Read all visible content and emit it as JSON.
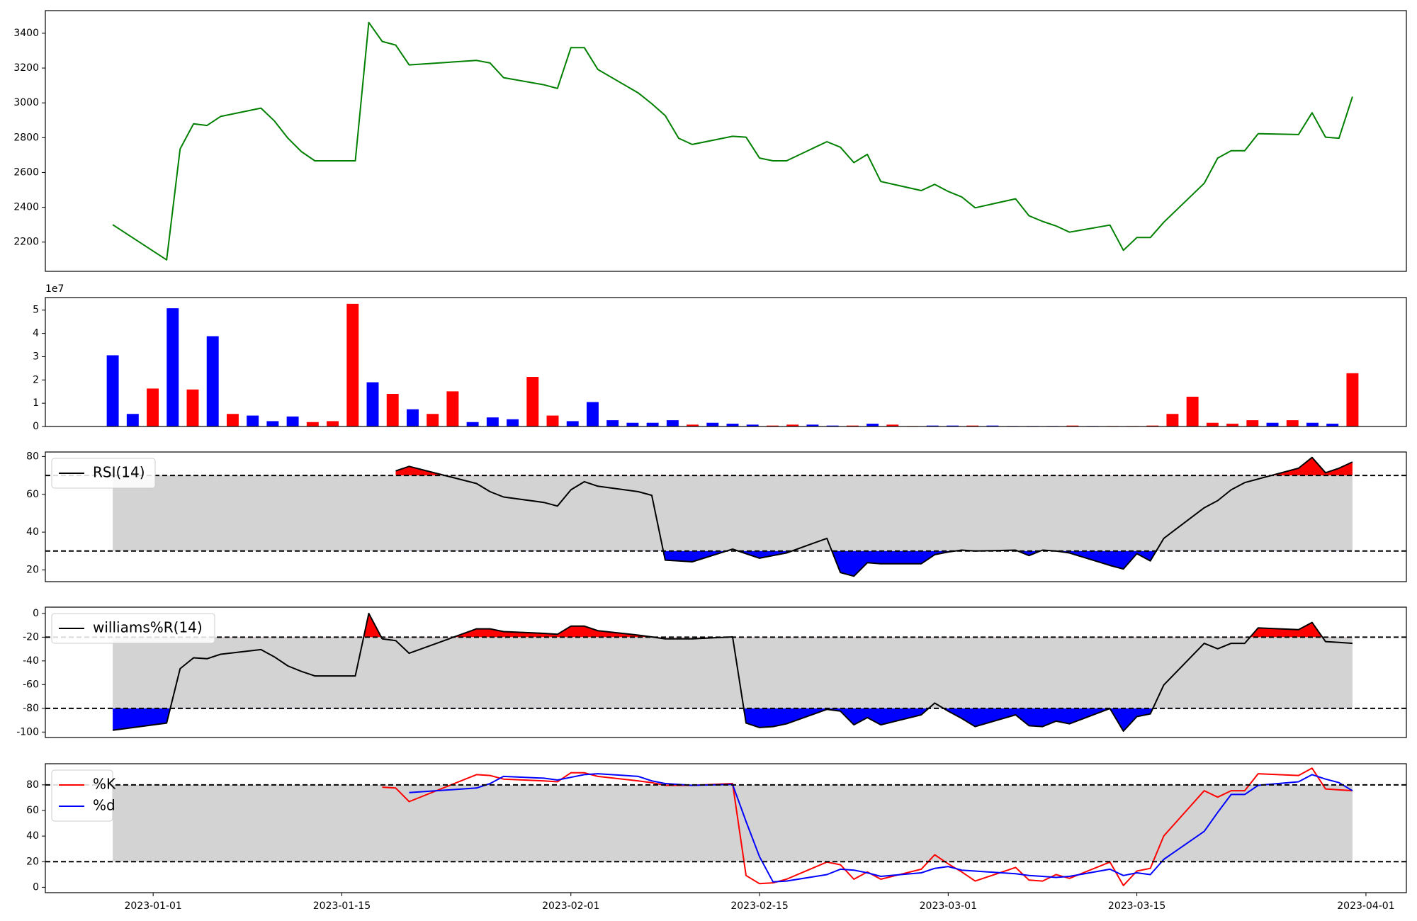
{
  "chart_data": [
    {
      "type": "line",
      "ylim": [
        2032,
        3530
      ],
      "yticks": [
        2200,
        2400,
        2600,
        2800,
        3000,
        3200,
        3400
      ],
      "series": [
        {
          "color": "green",
          "values": [
            2300,
            2098,
            2735,
            2880,
            2870,
            2922,
            2970,
            2896,
            2797,
            2720,
            2667,
            2667,
            3462,
            3353,
            3332,
            3218,
            3244,
            3229,
            3145,
            3104,
            3083,
            3317,
            3317,
            3192,
            3057,
            2995,
            2927,
            2797,
            2761,
            2808,
            2803,
            2683,
            2667,
            2667,
            2777,
            2745,
            2657,
            2704,
            2548,
            2496,
            2532,
            2491,
            2460,
            2397,
            2449,
            2351,
            2319,
            2293,
            2257,
            2298,
            2153,
            2226,
            2226,
            2314,
            2538,
            2683,
            2725,
            2725,
            2823,
            2818,
            2943,
            2803,
            2797,
            3036
          ]
        }
      ]
    },
    {
      "type": "bar",
      "offset_text": "1e7",
      "ylim": [
        0,
        5.54
      ],
      "yticks": [
        0,
        1,
        2,
        3,
        4,
        5
      ],
      "values": [
        3.06,
        0.54,
        1.63,
        5.08,
        1.59,
        3.88,
        0.54,
        0.47,
        0.23,
        0.43,
        0.19,
        0.23,
        5.27,
        1.9,
        1.4,
        0.74,
        0.54,
        1.51,
        0.19,
        0.39,
        0.31,
        2.13,
        0.47,
        0.23,
        1.05,
        0.27,
        0.16,
        0.16,
        0.27,
        0.08,
        0.16,
        0.12,
        0.08,
        0.04,
        0.08,
        0.08,
        0.04,
        0.04,
        0.12,
        0.08,
        0.02,
        0.04,
        0.04,
        0.04,
        0.04,
        0.02,
        0.02,
        0.02,
        0.04,
        0.02,
        0.02,
        0.02,
        0.04,
        0.54,
        1.28,
        0.16,
        0.12,
        0.27,
        0.16,
        0.27,
        0.16,
        0.12,
        2.29
      ],
      "colors": [
        "blue",
        "blue",
        "red",
        "blue",
        "red",
        "blue",
        "red",
        "blue",
        "blue",
        "blue",
        "red",
        "red",
        "red",
        "blue",
        "red",
        "blue",
        "red",
        "red",
        "blue",
        "blue",
        "blue",
        "red",
        "red",
        "blue",
        "blue",
        "blue",
        "blue",
        "blue",
        "blue",
        "red",
        "blue",
        "blue",
        "blue",
        "red",
        "red",
        "blue",
        "blue",
        "red",
        "blue",
        "red",
        "red",
        "blue",
        "blue",
        "red",
        "blue",
        "blue",
        "blue",
        "blue",
        "red",
        "blue",
        "red",
        "red",
        "red",
        "red",
        "red",
        "red",
        "red",
        "red",
        "blue",
        "red",
        "blue",
        "blue",
        "red"
      ]
    },
    {
      "type": "line",
      "ylim": [
        13.8,
        82.4
      ],
      "yticks": [
        20,
        40,
        60,
        80
      ],
      "legend": "upper left",
      "overbought": 70,
      "oversold": 30,
      "band_color": "#d3d3d3",
      "fill_extremes": true,
      "overbought_color": "red",
      "oversold_color": "blue",
      "series": [
        {
          "name": "RSI(14)",
          "color": "black",
          "values": [
            null,
            null,
            null,
            null,
            null,
            null,
            null,
            null,
            null,
            null,
            null,
            null,
            null,
            null,
            72.4,
            74.8,
            65.7,
            61.4,
            58.6,
            55.7,
            53.8,
            62.4,
            66.7,
            64.3,
            61.4,
            59.5,
            25.2,
            24.8,
            24.3,
            31,
            28.6,
            26.2,
            27.6,
            29,
            36.7,
            18.6,
            16.7,
            23.8,
            23.3,
            23.3,
            28.1,
            29.5,
            30.5,
            30,
            30.5,
            27.6,
            30.5,
            30,
            29,
            22.4,
            20.5,
            28.6,
            24.8,
            36.7,
            52.9,
            56.7,
            62.4,
            66.2,
            68.1,
            73.8,
            79.5,
            71.4,
            73.8,
            77.1
          ]
        }
      ]
    },
    {
      "type": "line",
      "ylim": [
        -104.6,
        5.3
      ],
      "yticks": [
        -100,
        -80,
        -60,
        -40,
        -20,
        0
      ],
      "legend": "upper left",
      "overbought": -20,
      "oversold": -80,
      "band_color": "#d3d3d3",
      "fill_extremes": true,
      "overbought_color": "red",
      "oversold_color": "blue",
      "series": [
        {
          "name": "williams%R(14)",
          "color": "black",
          "values": [
            -98.5,
            -92.4,
            -46.6,
            -37.4,
            -38.2,
            -34.4,
            -30.5,
            -36.6,
            -44.3,
            -48.9,
            -52.7,
            -52.7,
            0,
            -21.4,
            -22.9,
            -33.6,
            -13,
            -13,
            -15.3,
            -16.8,
            -17.6,
            -10.7,
            -10.7,
            -14.5,
            -18.3,
            -19.8,
            -21.4,
            -21.4,
            -21.4,
            -19.8,
            -92.4,
            -96.2,
            -95.4,
            -93.1,
            -80.9,
            -82.4,
            -93.9,
            -87.8,
            -93.9,
            -85.5,
            -75.6,
            -82.4,
            -88.5,
            -95.4,
            -85.5,
            -94.7,
            -95.4,
            -90.8,
            -93.1,
            -80.2,
            -99.2,
            -87,
            -84.7,
            -60.3,
            -25.2,
            -29.8,
            -25.2,
            -25.2,
            -12.2,
            -13.7,
            -7.6,
            -23.7,
            -24.4,
            -25.2
          ]
        }
      ]
    },
    {
      "type": "line",
      "ylim": [
        -4.2,
        96.5
      ],
      "yticks": [
        0,
        20,
        40,
        60,
        80
      ],
      "legend": "upper left",
      "overbought": 80,
      "oversold": 20,
      "band_color": "#d3d3d3",
      "fill_extremes": false,
      "x": [
        "2022-12-29",
        "2023-01-02",
        "2023-01-03",
        "2023-01-04",
        "2023-01-05",
        "2023-01-06",
        "2023-01-09",
        "2023-01-10",
        "2023-01-11",
        "2023-01-12",
        "2023-01-13",
        "2023-01-16",
        "2023-01-17",
        "2023-01-18",
        "2023-01-19",
        "2023-01-20",
        "2023-01-25",
        "2023-01-26",
        "2023-01-27",
        "2023-01-30",
        "2023-01-31",
        "2023-02-01",
        "2023-02-02",
        "2023-02-03",
        "2023-02-06",
        "2023-02-07",
        "2023-02-08",
        "2023-02-09",
        "2023-02-10",
        "2023-02-13",
        "2023-02-14",
        "2023-02-15",
        "2023-02-16",
        "2023-02-17",
        "2023-02-20",
        "2023-02-21",
        "2023-02-22",
        "2023-02-23",
        "2023-02-24",
        "2023-02-27",
        "2023-02-28",
        "2023-03-01",
        "2023-03-02",
        "2023-03-03",
        "2023-03-06",
        "2023-03-07",
        "2023-03-08",
        "2023-03-09",
        "2023-03-10",
        "2023-03-13",
        "2023-03-14",
        "2023-03-15",
        "2023-03-16",
        "2023-03-17",
        "2023-03-20",
        "2023-03-21",
        "2023-03-22",
        "2023-03-23",
        "2023-03-24",
        "2023-03-27",
        "2023-03-28",
        "2023-03-29",
        "2023-03-30",
        "2023-03-31"
      ],
      "xlim": [
        "2022-12-24",
        "2023-04-04"
      ],
      "xticks": [
        "2023-01-01",
        "2023-01-15",
        "2023-02-01",
        "2023-02-15",
        "2023-03-01",
        "2023-03-15",
        "2023-04-01"
      ],
      "series": [
        {
          "name": "%K",
          "color": "red",
          "values": [
            null,
            null,
            null,
            null,
            null,
            null,
            null,
            null,
            null,
            null,
            null,
            null,
            null,
            78.2,
            77.5,
            66.9,
            88,
            87.3,
            84.5,
            83.1,
            82.4,
            89.4,
            89.4,
            86.6,
            83.1,
            81.7,
            79.6,
            79.6,
            79.6,
            81,
            9.2,
            2.8,
            3.5,
            6.3,
            19.7,
            17.6,
            6.3,
            12,
            6.3,
            14.1,
            25.4,
            18.3,
            12,
            4.9,
            15.5,
            5.6,
            4.9,
            9.9,
            7,
            19.7,
            1.4,
            12.7,
            14.8,
            40.1,
            75.4,
            70.4,
            75.4,
            75.4,
            88.7,
            87.3,
            93,
            76.8,
            76.1,
            75.4
          ]
        },
        {
          "name": "%d",
          "color": "blue",
          "values": [
            null,
            null,
            null,
            null,
            null,
            null,
            null,
            null,
            null,
            null,
            null,
            null,
            null,
            null,
            null,
            73.9,
            77.5,
            81,
            86.6,
            85.2,
            83.8,
            85.9,
            88,
            88.7,
            86.6,
            83.1,
            81,
            80.3,
            79.6,
            80.3,
            51.4,
            23.9,
            4.2,
            4.9,
            9.9,
            14.1,
            13.4,
            11.3,
            8.5,
            11.3,
            14.8,
            16.2,
            13.4,
            12.7,
            10.6,
            9.2,
            8.5,
            7.7,
            8.5,
            14.1,
            9.2,
            11.3,
            9.9,
            21.8,
            43.7,
            58.5,
            72.5,
            72.5,
            79.6,
            82.4,
            88,
            84.5,
            81.7,
            75.4
          ]
        }
      ]
    }
  ]
}
